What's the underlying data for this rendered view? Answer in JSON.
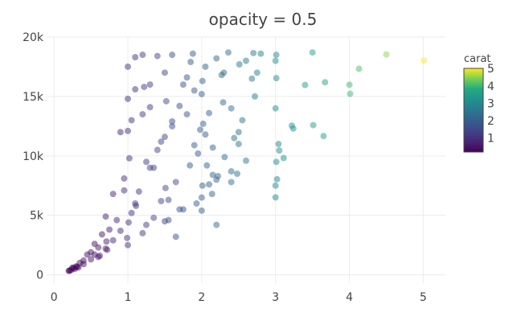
{
  "chart_data": {
    "type": "scatter",
    "title": "opacity = 0.5",
    "xlabel": "",
    "ylabel": "",
    "xlim": [
      -0.1,
      5.3
    ],
    "ylim": [
      -700,
      20000
    ],
    "x_ticks": [
      0,
      1,
      2,
      3,
      4,
      5
    ],
    "x_tick_labels": [
      "0",
      "1",
      "2",
      "3",
      "4",
      "5"
    ],
    "y_ticks": [
      0,
      5000,
      10000,
      15000,
      20000
    ],
    "y_tick_labels": [
      "0",
      "5k",
      "10k",
      "15k",
      "20k"
    ],
    "marker_opacity": 0.5,
    "colorscale": "Viridis",
    "colorbar": {
      "title": "carat",
      "range": [
        0.2,
        5.01
      ],
      "ticks": [
        1,
        2,
        3,
        4,
        5
      ],
      "tick_labels": [
        "1",
        "2",
        "3",
        "4",
        "5"
      ]
    },
    "x": [
      5.01,
      4.5,
      4.13,
      4.01,
      4.0,
      3.67,
      3.65,
      3.51,
      3.5,
      3.4,
      3.24,
      3.22,
      3.11,
      3.05,
      3.04,
      3.02,
      3.01,
      3.01,
      3.0,
      3.0,
      3.0,
      3.0,
      3.01,
      2.8,
      2.75,
      2.72,
      2.68,
      2.6,
      2.55,
      2.5,
      2.48,
      2.44,
      2.4,
      2.36,
      2.31,
      2.29,
      2.27,
      2.22,
      2.2,
      2.15,
      2.14,
      2.1,
      2.07,
      2.05,
      2.01,
      2.0,
      1.98,
      1.93,
      1.88,
      1.84,
      1.8,
      1.75,
      1.7,
      1.65,
      1.6,
      1.55,
      1.5,
      1.45,
      1.4,
      1.35,
      1.3,
      1.25,
      1.2,
      1.15,
      1.1,
      1.05,
      1.02,
      1.0,
      0.99,
      0.95,
      0.9,
      0.85,
      0.8,
      0.75,
      0.71,
      0.7,
      0.65,
      0.6,
      0.55,
      0.5,
      0.45,
      0.4,
      0.35,
      0.3,
      0.28,
      0.25,
      0.23,
      0.21,
      0.2,
      1.0,
      1.2,
      1.5,
      1.7,
      2.0,
      2.2,
      2.5,
      0.9,
      1.1,
      1.3,
      1.6,
      1.9,
      2.3,
      2.6,
      0.8,
      1.4,
      1.8,
      2.1,
      2.4,
      0.6,
      0.7,
      1.0,
      1.2,
      1.5,
      1.75,
      2.05,
      1.25,
      1.55,
      1.85,
      2.15,
      0.95,
      1.05,
      1.35,
      1.65,
      1.95,
      0.5,
      0.55,
      0.62,
      0.4,
      0.33,
      0.72,
      1.01,
      1.11,
      1.51,
      2.01,
      2.51,
      2.02,
      1.52,
      1.22,
      0.31,
      0.26,
      1.0,
      1.1,
      1.3,
      1.45,
      1.6,
      1.9,
      2.0,
      2.2,
      2.4,
      2.7
    ],
    "y": [
      18018,
      18531,
      17329,
      15223,
      15984,
      16193,
      11668,
      12587,
      18701,
      15964,
      12300,
      12545,
      9823,
      10453,
      11000,
      8040,
      18500,
      16538,
      6512,
      7500,
      18000,
      14000,
      9500,
      18600,
      17000,
      15000,
      16500,
      9600,
      13000,
      12000,
      8500,
      11500,
      7800,
      18700,
      9900,
      14500,
      16800,
      8300,
      18200,
      10700,
      6800,
      13600,
      9200,
      17500,
      7500,
      15200,
      12200,
      6000,
      18600,
      9200,
      16600,
      5500,
      14200,
      7800,
      18500,
      4600,
      11600,
      6200,
      18400,
      9000,
      16000,
      4200,
      13500,
      7000,
      18300,
      5200,
      9800,
      14800,
      3100,
      8100,
      12000,
      4600,
      6800,
      3800,
      2800,
      4900,
      3400,
      2300,
      2600,
      1900,
      1700,
      1200,
      1000,
      700,
      500,
      600,
      400,
      350,
      330,
      2500,
      3500,
      4500,
      5500,
      6500,
      8000,
      11000,
      3700,
      6000,
      9000,
      12500,
      15500,
      17000,
      18000,
      2900,
      10500,
      13500,
      7600,
      14000,
      1500,
      2200,
      17500,
      18500,
      17000,
      16000,
      11800,
      9500,
      6300,
      17900,
      8400,
      7100,
      13000,
      4800,
      3200,
      10200,
      1300,
      1700,
      1600,
      900,
      620,
      2100,
      4400,
      5800,
      7300,
      16300,
      17700,
      12700,
      14600,
      15800,
      680,
      560,
      12100,
      15600,
      14100,
      11200,
      12900,
      10900,
      5400,
      4200,
      8700,
      18650
    ]
  }
}
